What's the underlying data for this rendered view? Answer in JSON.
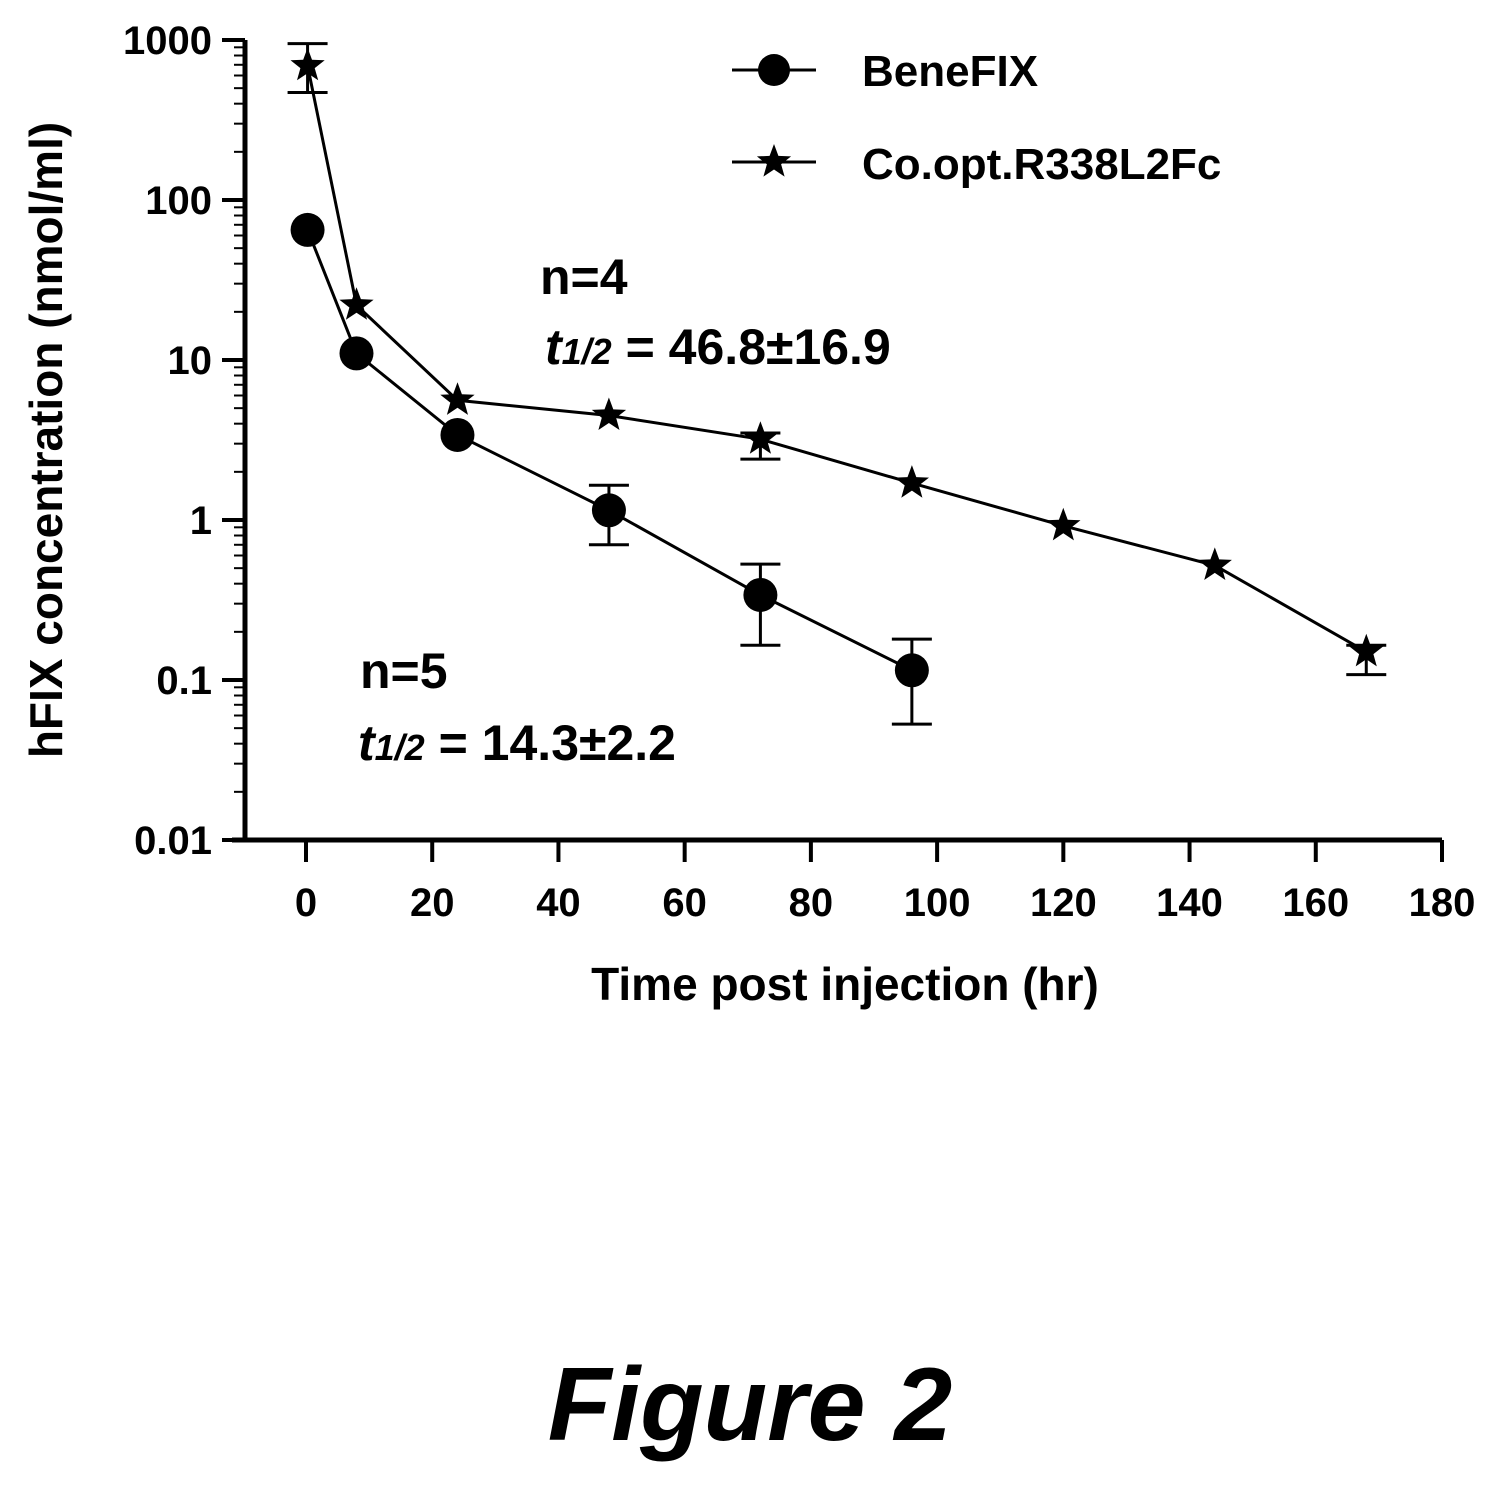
{
  "chart_data": {
    "type": "line",
    "xlabel": "Time post injection (hr)",
    "ylabel": "hFIX concentration (nmol/ml)",
    "xlim": [
      -10,
      180
    ],
    "ylim": [
      0.01,
      1000
    ],
    "yscale": "log",
    "x_ticks": [
      0,
      20,
      40,
      60,
      80,
      100,
      120,
      140,
      160,
      180
    ],
    "y_ticks": [
      0.01,
      0.1,
      1,
      10,
      100,
      1000
    ],
    "x_tick_labels": [
      "0",
      "20",
      "40",
      "60",
      "80",
      "100",
      "120",
      "140",
      "160",
      "180"
    ],
    "y_tick_labels": [
      "0.01",
      "0.1",
      "1",
      "10",
      "100",
      "1000"
    ],
    "grid": false,
    "legend_position": "top-right",
    "series": [
      {
        "name": "BeneFIX",
        "marker": "circle",
        "x": [
          0.25,
          8,
          24,
          48,
          72,
          96
        ],
        "y": [
          65,
          11,
          3.4,
          1.15,
          0.34,
          0.115
        ],
        "err_low": [
          null,
          null,
          null,
          0.7,
          0.165,
          0.053
        ],
        "err_high": [
          null,
          null,
          null,
          1.65,
          0.53,
          0.18
        ]
      },
      {
        "name": "Co.opt.R338L2Fc",
        "marker": "star",
        "x": [
          0.25,
          8,
          24,
          48,
          72,
          96,
          120,
          144,
          168
        ],
        "y": [
          690,
          22,
          5.6,
          4.5,
          3.2,
          1.7,
          0.92,
          0.52,
          0.15
        ],
        "err_low": [
          470,
          null,
          null,
          null,
          2.4,
          null,
          null,
          null,
          0.108
        ],
        "err_high": [
          950,
          null,
          null,
          null,
          3.5,
          null,
          null,
          null,
          0.165
        ]
      }
    ],
    "annotations": [
      {
        "n": "n=4",
        "t": "t",
        "sub": "1/2",
        "value": " = 46.8±16.9",
        "at_x": 38,
        "at_y": 8.5
      },
      {
        "n": "n=5",
        "t": "t",
        "sub": "1/2",
        "value": " = 14.3±2.2",
        "at_x": 9,
        "at_y": 0.032
      }
    ]
  },
  "figure": {
    "caption": "Figure 2"
  },
  "colors": {
    "ink": "#000000",
    "background": "#ffffff"
  }
}
